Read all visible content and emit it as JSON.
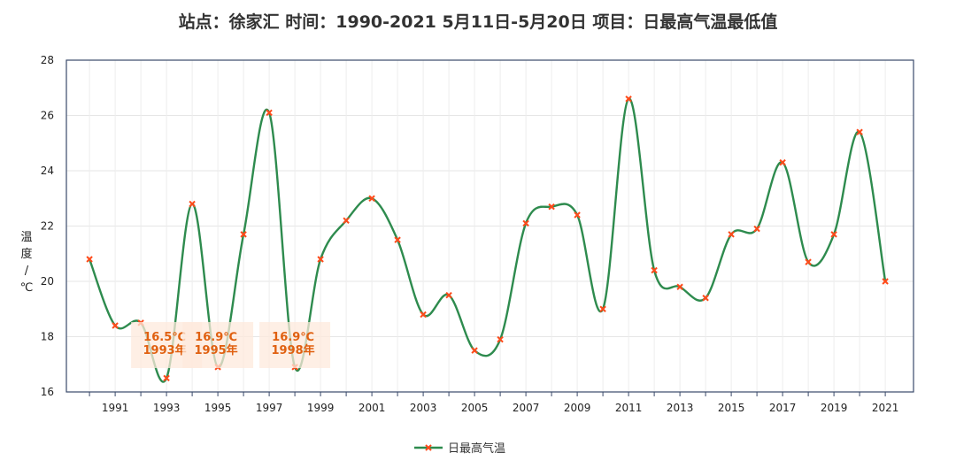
{
  "chart_data": {
    "type": "line",
    "title": "站点：徐家汇 时间：1990-2021  5月11日-5月20日 项目：日最高气温最低值",
    "ylabel": [
      "温",
      "度",
      "/",
      "℃"
    ],
    "x": [
      1990,
      1991,
      1992,
      1993,
      1994,
      1995,
      1996,
      1997,
      1998,
      1999,
      2000,
      2001,
      2002,
      2003,
      2004,
      2005,
      2006,
      2007,
      2008,
      2009,
      2010,
      2011,
      2012,
      2013,
      2014,
      2015,
      2016,
      2017,
      2018,
      2019,
      2020,
      2021
    ],
    "x_tick_labels": [
      "1991",
      "1993",
      "1995",
      "1997",
      "1999",
      "2001",
      "2003",
      "2005",
      "2007",
      "2009",
      "2011",
      "2013",
      "2015",
      "2017",
      "2019",
      "2021"
    ],
    "xlim": [
      1989.1,
      2022.1
    ],
    "ylim": [
      16,
      28
    ],
    "y_ticks": [
      16,
      18,
      20,
      22,
      24,
      26,
      28
    ],
    "grid": true,
    "series": [
      {
        "name": "日最高气温",
        "color": "#2e8b4e",
        "marker_color": "#ff4a1a",
        "values": [
          20.8,
          18.4,
          18.5,
          16.5,
          22.8,
          16.9,
          21.7,
          26.1,
          16.9,
          20.8,
          22.2,
          23.0,
          21.5,
          18.8,
          19.5,
          17.5,
          17.9,
          22.1,
          22.7,
          22.4,
          19.0,
          26.6,
          20.4,
          19.8,
          19.4,
          21.7,
          21.9,
          24.3,
          20.7,
          21.7,
          25.4,
          20.0
        ]
      }
    ],
    "annotations": [
      {
        "x": 1993,
        "y": 16.5,
        "value_text": "16.5℃",
        "year_text": "1993年"
      },
      {
        "x": 1995,
        "y": 16.9,
        "value_text": "16.9℃",
        "year_text": "1995年"
      },
      {
        "x": 1998,
        "y": 16.9,
        "value_text": "16.9℃",
        "year_text": "1998年"
      }
    ],
    "legend": {
      "position": "bottom-center",
      "label": "日最高气温"
    }
  }
}
